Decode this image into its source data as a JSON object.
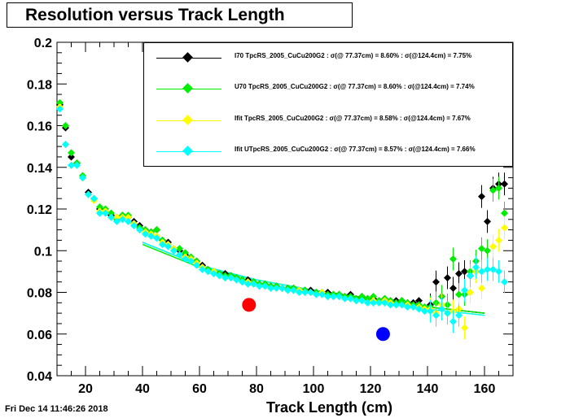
{
  "title": "Resolution versus Track Length",
  "timestamp": "Fri Dec 14 11:46:26 2018",
  "chart_data": {
    "type": "scatter",
    "title": "Resolution versus Track Length",
    "xlabel": "Track Length (cm)",
    "ylabel": "",
    "xlim": [
      10,
      170
    ],
    "ylim": [
      0.04,
      0.2
    ],
    "x_ticks": [
      20,
      40,
      60,
      80,
      100,
      120,
      140,
      160
    ],
    "y_ticks": [
      0.04,
      0.06,
      0.08,
      0.1,
      0.12,
      0.14,
      0.16,
      0.18,
      0.2
    ],
    "x_tick_labels": [
      "20",
      "40",
      "60",
      "80",
      "100",
      "120",
      "140",
      "160"
    ],
    "y_tick_labels": [
      "0.04",
      "0.06",
      "0.08",
      "0.1",
      "0.12",
      "0.14",
      "0.16",
      "0.18",
      "0.2"
    ],
    "legend_position": "top-right",
    "series": [
      {
        "name": "I70 TpcRS_2005_CuCu200G2 : σ(@ 77.37cm) = 8.60% : σ(@124.4cm) = 7.75%",
        "label": "I70  TpcRS_2005_CuCu200G2 : σ(@ 77.37cm) =  8.60% : σ(@124.4cm) = 7.75%",
        "color": "#000000",
        "x": [
          11,
          13,
          15,
          17,
          19,
          21,
          23,
          25,
          27,
          29,
          31,
          33,
          35,
          37,
          39,
          41,
          43,
          45,
          47,
          49,
          51,
          53,
          55,
          57,
          59,
          61,
          63,
          65,
          67,
          69,
          71,
          73,
          75,
          77,
          79,
          81,
          83,
          85,
          87,
          89,
          91,
          93,
          95,
          97,
          99,
          101,
          103,
          105,
          107,
          109,
          111,
          113,
          115,
          117,
          119,
          121,
          123,
          125,
          127,
          129,
          131,
          133,
          135,
          137,
          139,
          141,
          143,
          145,
          147,
          149,
          151,
          153,
          155,
          157,
          159,
          161,
          163,
          165,
          167
        ],
        "y": [
          0.17,
          0.159,
          0.145,
          0.142,
          0.135,
          0.128,
          0.125,
          0.12,
          0.119,
          0.117,
          0.116,
          0.117,
          0.116,
          0.114,
          0.112,
          0.11,
          0.109,
          0.11,
          0.105,
          0.104,
          0.101,
          0.1,
          0.098,
          0.096,
          0.095,
          0.093,
          0.091,
          0.09,
          0.089,
          0.089,
          0.088,
          0.087,
          0.086,
          0.086,
          0.085,
          0.084,
          0.084,
          0.083,
          0.083,
          0.082,
          0.082,
          0.082,
          0.081,
          0.081,
          0.081,
          0.08,
          0.08,
          0.08,
          0.079,
          0.079,
          0.078,
          0.079,
          0.077,
          0.078,
          0.077,
          0.077,
          0.076,
          0.077,
          0.076,
          0.076,
          0.076,
          0.075,
          0.075,
          0.076,
          0.072,
          0.074,
          0.085,
          0.078,
          0.087,
          0.082,
          0.089,
          0.09,
          0.088,
          0.09,
          0.126,
          0.114,
          0.13,
          0.132,
          0.132
        ]
      },
      {
        "name": "U70 TpcRS_2005_CuCu200G2 : σ(@ 77.37cm) = 8.60% : σ(@124.4cm) = 7.74%",
        "label": "U70  TpcRS_2005_CuCu200G2 : σ(@ 77.37cm) =  8.60% : σ(@124.4cm) = 7.74%",
        "color": "#00ee00",
        "x": [
          11,
          13,
          15,
          17,
          19,
          21,
          23,
          25,
          27,
          29,
          31,
          33,
          35,
          37,
          39,
          41,
          43,
          45,
          47,
          49,
          51,
          53,
          55,
          57,
          59,
          61,
          63,
          65,
          67,
          69,
          71,
          73,
          75,
          77,
          79,
          81,
          83,
          85,
          87,
          89,
          91,
          93,
          95,
          97,
          99,
          101,
          103,
          105,
          107,
          109,
          111,
          113,
          115,
          117,
          119,
          121,
          123,
          125,
          127,
          129,
          131,
          133,
          135,
          137,
          139,
          141,
          143,
          145,
          147,
          149,
          151,
          153,
          155,
          157,
          159,
          161,
          163,
          165,
          167
        ],
        "y": [
          0.171,
          0.16,
          0.147,
          0.142,
          0.136,
          0.127,
          0.125,
          0.121,
          0.12,
          0.118,
          0.115,
          0.117,
          0.117,
          0.113,
          0.111,
          0.11,
          0.109,
          0.11,
          0.105,
          0.103,
          0.1,
          0.101,
          0.099,
          0.097,
          0.095,
          0.092,
          0.091,
          0.09,
          0.089,
          0.088,
          0.088,
          0.087,
          0.086,
          0.085,
          0.085,
          0.084,
          0.084,
          0.083,
          0.083,
          0.082,
          0.082,
          0.082,
          0.081,
          0.081,
          0.08,
          0.08,
          0.08,
          0.079,
          0.079,
          0.079,
          0.078,
          0.078,
          0.077,
          0.078,
          0.077,
          0.078,
          0.076,
          0.077,
          0.076,
          0.075,
          0.076,
          0.075,
          0.074,
          0.074,
          0.073,
          0.073,
          0.075,
          0.078,
          0.074,
          0.096,
          0.079,
          0.079,
          0.09,
          0.095,
          0.101,
          0.1,
          0.129,
          0.13,
          0.118
        ]
      },
      {
        "name": "Ifit TpcRS_2005_CuCu200G2 : σ(@ 77.37cm) = 8.58% : σ(@124.4cm) = 7.67%",
        "label": "Ifit TpcRS_2005_CuCu200G2 : σ(@ 77.37cm) =  8.58% : σ(@124.4cm) = 7.67%",
        "color": "#ffff00",
        "x": [
          11,
          13,
          15,
          17,
          19,
          21,
          23,
          25,
          27,
          29,
          31,
          33,
          35,
          37,
          39,
          41,
          43,
          45,
          47,
          49,
          51,
          53,
          55,
          57,
          59,
          61,
          63,
          65,
          67,
          69,
          71,
          73,
          75,
          77,
          79,
          81,
          83,
          85,
          87,
          89,
          91,
          93,
          95,
          97,
          99,
          101,
          103,
          105,
          107,
          109,
          111,
          113,
          115,
          117,
          119,
          121,
          123,
          125,
          127,
          129,
          131,
          133,
          135,
          137,
          139,
          141,
          143,
          145,
          147,
          149,
          151,
          153,
          155,
          157,
          159,
          161,
          163,
          165,
          167
        ],
        "y": [
          0.169,
          0.151,
          0.141,
          0.141,
          0.135,
          0.127,
          0.124,
          0.119,
          0.119,
          0.116,
          0.116,
          0.116,
          0.116,
          0.113,
          0.11,
          0.109,
          0.108,
          0.107,
          0.104,
          0.103,
          0.101,
          0.098,
          0.097,
          0.096,
          0.094,
          0.092,
          0.09,
          0.09,
          0.088,
          0.087,
          0.087,
          0.086,
          0.085,
          0.085,
          0.084,
          0.083,
          0.083,
          0.082,
          0.082,
          0.082,
          0.081,
          0.081,
          0.081,
          0.08,
          0.08,
          0.079,
          0.08,
          0.078,
          0.078,
          0.078,
          0.077,
          0.077,
          0.076,
          0.076,
          0.075,
          0.076,
          0.075,
          0.076,
          0.075,
          0.074,
          0.074,
          0.074,
          0.073,
          0.073,
          0.072,
          0.072,
          0.07,
          0.074,
          0.07,
          0.071,
          0.072,
          0.063,
          0.08,
          0.09,
          0.082,
          0.091,
          0.102,
          0.105,
          0.111
        ]
      },
      {
        "name": "Ifit UTpcRS_2005_CuCu200G2 : σ(@ 77.37cm) = 8.57% : σ(@124.4cm) = 7.66%",
        "label": "Ifit UTpcRS_2005_CuCu200G2 : σ(@ 77.37cm) =  8.57% : σ(@124.4cm) = 7.66%",
        "color": "#00ffff",
        "x": [
          11,
          13,
          15,
          17,
          19,
          21,
          23,
          25,
          27,
          29,
          31,
          33,
          35,
          37,
          39,
          41,
          43,
          45,
          47,
          49,
          51,
          53,
          55,
          57,
          59,
          61,
          63,
          65,
          67,
          69,
          71,
          73,
          75,
          77,
          79,
          81,
          83,
          85,
          87,
          89,
          91,
          93,
          95,
          97,
          99,
          101,
          103,
          105,
          107,
          109,
          111,
          113,
          115,
          117,
          119,
          121,
          123,
          125,
          127,
          129,
          131,
          133,
          135,
          137,
          139,
          141,
          143,
          145,
          147,
          149,
          151,
          153,
          155,
          157,
          159,
          161,
          163,
          165,
          167
        ],
        "y": [
          0.168,
          0.151,
          0.141,
          0.141,
          0.135,
          0.127,
          0.125,
          0.118,
          0.118,
          0.116,
          0.114,
          0.115,
          0.114,
          0.112,
          0.11,
          0.108,
          0.107,
          0.106,
          0.103,
          0.102,
          0.1,
          0.098,
          0.096,
          0.095,
          0.093,
          0.091,
          0.09,
          0.089,
          0.088,
          0.087,
          0.087,
          0.086,
          0.085,
          0.084,
          0.084,
          0.083,
          0.083,
          0.082,
          0.082,
          0.082,
          0.081,
          0.081,
          0.08,
          0.08,
          0.08,
          0.079,
          0.079,
          0.078,
          0.078,
          0.078,
          0.077,
          0.077,
          0.076,
          0.076,
          0.075,
          0.075,
          0.075,
          0.075,
          0.074,
          0.074,
          0.074,
          0.073,
          0.073,
          0.072,
          0.071,
          0.071,
          0.069,
          0.072,
          0.07,
          0.066,
          0.069,
          0.081,
          0.088,
          0.092,
          0.09,
          0.091,
          0.091,
          0.09,
          0.085
        ]
      }
    ],
    "fit_curves": [
      {
        "color": "#000000",
        "x": [
          40,
          60,
          80,
          100,
          120,
          140,
          160
        ],
        "y": [
          0.104,
          0.093,
          0.086,
          0.081,
          0.077,
          0.073,
          0.07
        ]
      },
      {
        "color": "#00ee00",
        "x": [
          40,
          60,
          80,
          100,
          120,
          140,
          160
        ],
        "y": [
          0.103,
          0.092,
          0.086,
          0.081,
          0.077,
          0.073,
          0.07
        ]
      },
      {
        "color": "#ffff00",
        "x": [
          40,
          60,
          80,
          100,
          120,
          140,
          160
        ],
        "y": [
          0.104,
          0.093,
          0.086,
          0.081,
          0.076,
          0.072,
          0.069
        ]
      },
      {
        "color": "#00ffff",
        "x": [
          40,
          60,
          80,
          100,
          120,
          140,
          160
        ],
        "y": [
          0.104,
          0.093,
          0.086,
          0.081,
          0.076,
          0.072,
          0.069
        ]
      }
    ],
    "reference_points": [
      {
        "x": 77.37,
        "y": 0.074,
        "color": "#ff0000"
      },
      {
        "x": 124.4,
        "y": 0.06,
        "color": "#0000ff"
      }
    ]
  }
}
